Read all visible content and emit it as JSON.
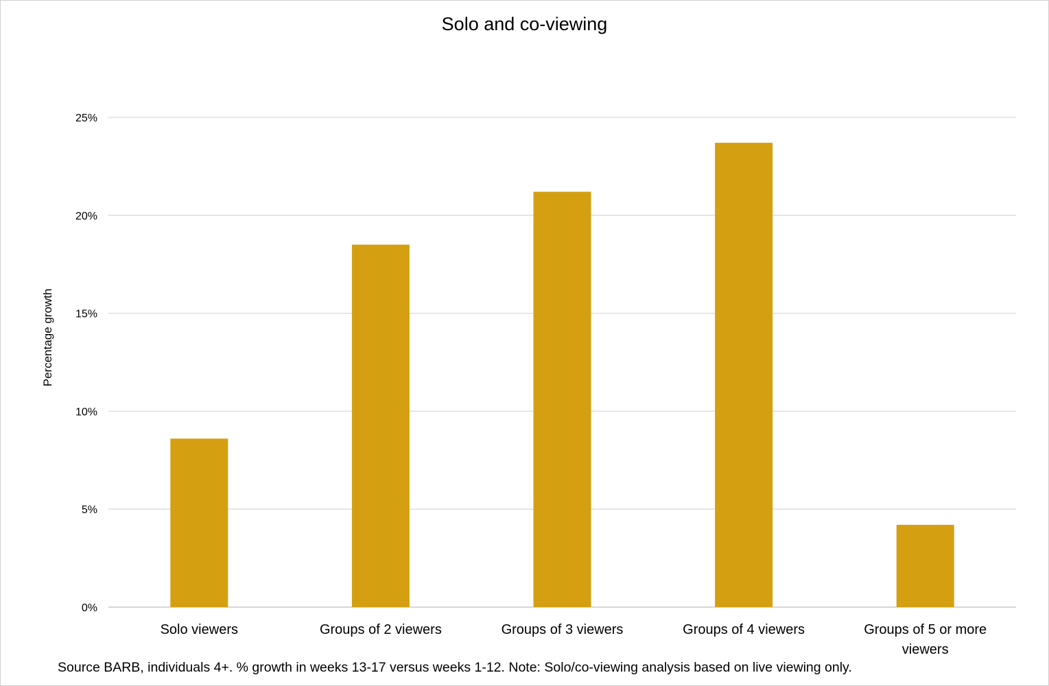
{
  "chart_data": {
    "type": "bar",
    "title": "Solo and co-viewing",
    "ylabel": "Percentage growth",
    "xlabel": "",
    "categories": [
      "Solo viewers",
      "Groups of 2 viewers",
      "Groups of 3 viewers",
      "Groups of 4 viewers",
      "Groups of 5 or more viewers"
    ],
    "category_lines": [
      [
        "Solo viewers"
      ],
      [
        "Groups of 2 viewers"
      ],
      [
        "Groups of 3 viewers"
      ],
      [
        "Groups of 4 viewers"
      ],
      [
        "Groups of 5 or more",
        "viewers"
      ]
    ],
    "values": [
      8.6,
      18.5,
      21.2,
      23.7,
      4.2
    ],
    "ylim": [
      0,
      25
    ],
    "yticks": [
      0,
      5,
      10,
      15,
      20,
      25
    ],
    "ytick_labels": [
      "0%",
      "5%",
      "10%",
      "15%",
      "20%",
      "25%"
    ],
    "grid": true,
    "legend": "none",
    "bar_color": "#D4A012",
    "grid_color": "#d9d9d9",
    "note": "Source BARB, individuals 4+. % growth in weeks 13-17 versus weeks 1-12. Note: Solo/co-viewing analysis based on live viewing only."
  }
}
